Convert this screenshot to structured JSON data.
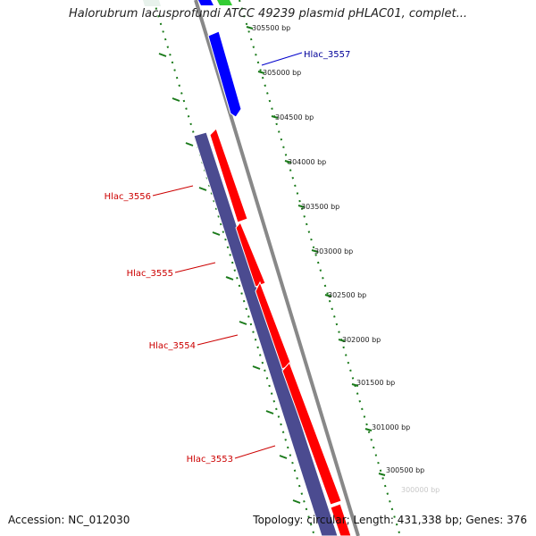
{
  "title": "Halorubrum lacusprofundi ATCC 49239 plasmid pHLAC01, complet...",
  "footer": {
    "accession": "Accession: NC_012030",
    "summary": "Topology: circular; Length: 431,338 bp; Genes: 376"
  },
  "colors": {
    "forward_cds": "#ff0000",
    "reverse_cds": "#0000ff",
    "rna": "#33cc33",
    "other_feature": "#4b4b90",
    "backbone": "#888888",
    "tick_marks": "#1a7a1a",
    "forward_label": "#cc0000",
    "reverse_label": "#000099"
  },
  "ticks": [
    {
      "label": "305500 bp"
    },
    {
      "label": "305000 bp"
    },
    {
      "label": "304500 bp"
    },
    {
      "label": "304000 bp"
    },
    {
      "label": "303500 bp"
    },
    {
      "label": "303000 bp"
    },
    {
      "label": "302500 bp"
    },
    {
      "label": "302000 bp"
    },
    {
      "label": "301500 bp"
    },
    {
      "label": "301000 bp"
    },
    {
      "label": "300500 bp"
    },
    {
      "label": "300000 bp"
    }
  ],
  "gene_labels": {
    "hlac_3557": "Hlac_3557",
    "hlac_3556": "Hlac_3556",
    "hlac_3555": "Hlac_3555",
    "hlac_3554": "Hlac_3554",
    "hlac_3553": "Hlac_3553"
  }
}
